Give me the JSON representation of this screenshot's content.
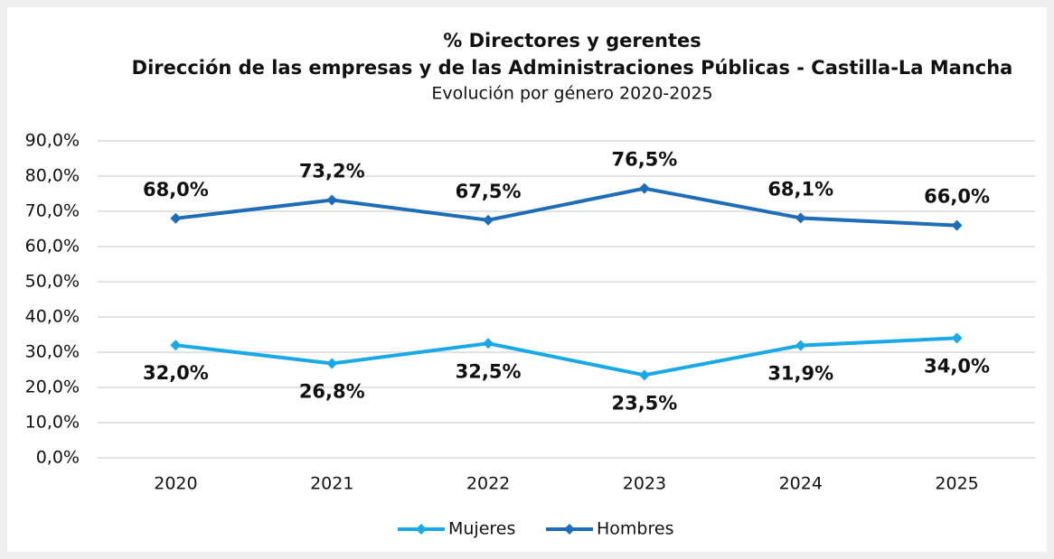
{
  "chart_data": {
    "type": "line",
    "title": "% Directores y gerentes",
    "subtitle": "Dirección de las empresas y de las Administraciones Públicas - Castilla-La Mancha",
    "annotations": [
      "Evolución por género 2020-2025"
    ],
    "categories": [
      "2020",
      "2021",
      "2022",
      "2023",
      "2024",
      "2025"
    ],
    "series": [
      {
        "name": "Mujeres",
        "color": "#1aa9e6",
        "values": [
          32.0,
          26.8,
          32.5,
          23.5,
          31.9,
          34.0
        ],
        "value_labels": [
          "32,0%",
          "26,8%",
          "32,5%",
          "23,5%",
          "31,9%",
          "34,0%"
        ]
      },
      {
        "name": "Hombres",
        "color": "#1f6db6",
        "values": [
          68.0,
          73.2,
          67.5,
          76.5,
          68.1,
          66.0
        ],
        "value_labels": [
          "68,0%",
          "73,2%",
          "67,5%",
          "76,5%",
          "68,1%",
          "66,0%"
        ]
      }
    ],
    "ylim": [
      0,
      90
    ],
    "yticks": [
      {
        "value": 0,
        "label": "0,0%"
      },
      {
        "value": 10,
        "label": "10,0%"
      },
      {
        "value": 20,
        "label": "20,0%"
      },
      {
        "value": 30,
        "label": "30,0%"
      },
      {
        "value": 40,
        "label": "40,0%"
      },
      {
        "value": 50,
        "label": "50,0%"
      },
      {
        "value": 60,
        "label": "60,0%"
      },
      {
        "value": 70,
        "label": "70,0%"
      },
      {
        "value": 80,
        "label": "80,0%"
      },
      {
        "value": 90,
        "label": "90,0%"
      }
    ],
    "grid": true,
    "legend": "bottom"
  }
}
